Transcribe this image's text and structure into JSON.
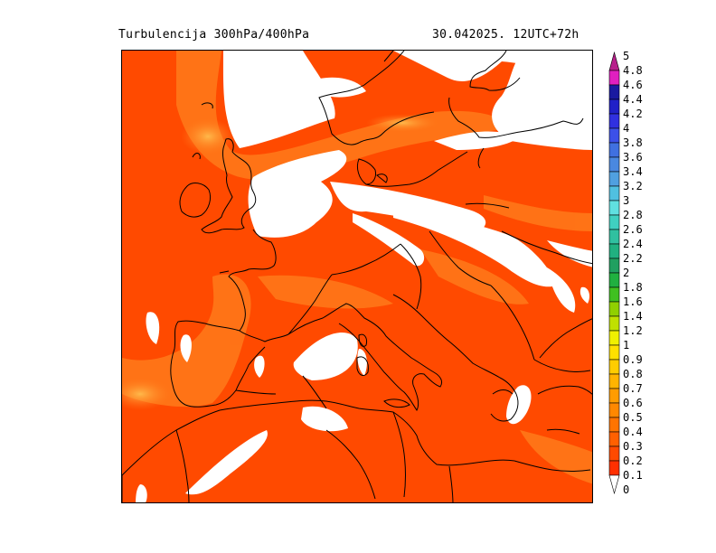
{
  "header": {
    "title": "Turbulencija  300hPa/400hPa",
    "datetime": "30.042025.   12UTC+72h"
  },
  "legend": {
    "levels": [
      "5",
      "4.8",
      "4.6",
      "4.4",
      "4.2",
      "4",
      "3.8",
      "3.6",
      "3.4",
      "3.2",
      "3",
      "2.8",
      "2.6",
      "2.4",
      "2.2",
      "2",
      "1.8",
      "1.6",
      "1.4",
      "1.2",
      "1",
      "0.9",
      "0.8",
      "0.7",
      "0.6",
      "0.5",
      "0.4",
      "0.3",
      "0.2",
      "0.1",
      "0"
    ],
    "colors": [
      "#b8208c",
      "#e020c0",
      "#1a1aa0",
      "#2020c8",
      "#3030e0",
      "#3c50e8",
      "#4070e0",
      "#4a88e0",
      "#50a0e0",
      "#50c0e0",
      "#60e0e0",
      "#40d0c0",
      "#30c0a0",
      "#20b080",
      "#20a060",
      "#20b040",
      "#40c020",
      "#90d000",
      "#c0e000",
      "#f0f000",
      "#ffe000",
      "#ffcc00",
      "#ffb400",
      "#ff9c00",
      "#ff8800",
      "#ff7400",
      "#ff6000",
      "#ff4a00",
      "#ff3000",
      "#ffffff"
    ]
  },
  "map": {
    "background_color": "#ff4a00",
    "light_band_color": "#ff7a1a",
    "highlight_color": "#ffb040",
    "no_data_color": "#ffffff",
    "coastline_color": "#000000"
  }
}
